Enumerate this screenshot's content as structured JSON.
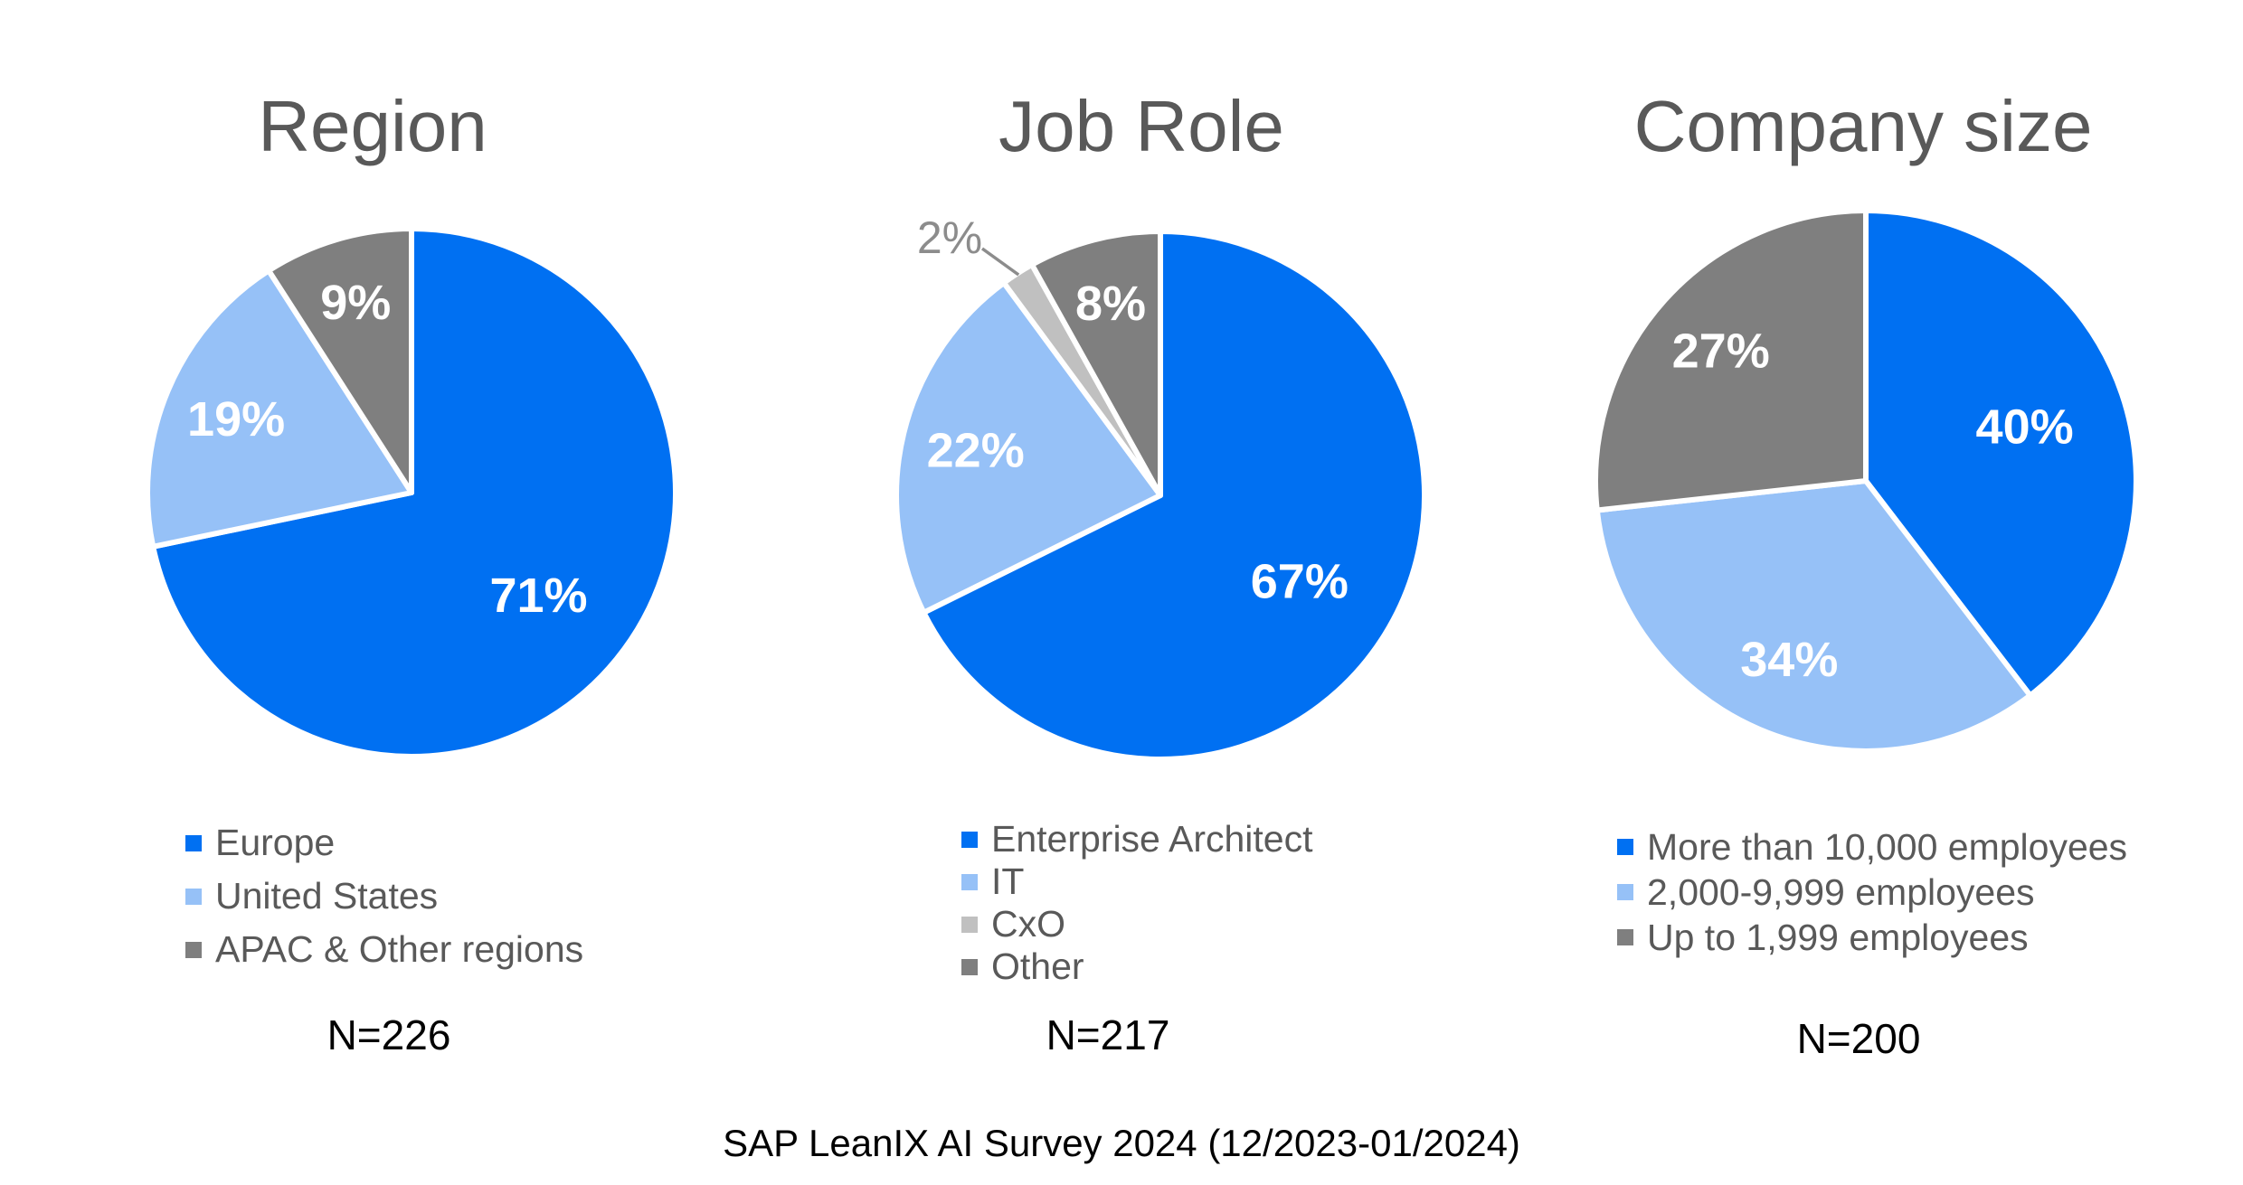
{
  "page": {
    "caption": "SAP LeanIX AI Survey 2024 (12/2023-01/2024)"
  },
  "colors": {
    "blue": "#0070F2",
    "light_blue": "#96C1F7",
    "dark_gray": "#7F7F7F",
    "light_gray": "#C0C0C0",
    "title_text": "#595959",
    "legend_text": "#595959",
    "pct_label_text": "#FFFFFF",
    "outside_label_text": "#8C8C8C",
    "n_label_text": "#000000"
  },
  "chart_data": [
    {
      "type": "pie",
      "title": "Region",
      "n_label": "N=226",
      "legend_position": "bottom-left",
      "slices": [
        {
          "label": "Europe",
          "value": 71,
          "pct_label": "71%",
          "color_key": "blue"
        },
        {
          "label": "United States",
          "value": 19,
          "pct_label": "19%",
          "color_key": "light_blue"
        },
        {
          "label": "APAC & Other regions",
          "value": 9,
          "pct_label": "9%",
          "color_key": "dark_gray"
        }
      ]
    },
    {
      "type": "pie",
      "title": "Job Role",
      "n_label": "N=217",
      "legend_position": "bottom-left",
      "slices": [
        {
          "label": "Enterprise Architect",
          "value": 67,
          "pct_label": "67%",
          "color_key": "blue"
        },
        {
          "label": "IT",
          "value": 22,
          "pct_label": "22%",
          "color_key": "light_blue"
        },
        {
          "label": "CxO",
          "value": 2,
          "pct_label": "2%",
          "color_key": "light_gray",
          "label_outside": true
        },
        {
          "label": "Other",
          "value": 8,
          "pct_label": "8%",
          "color_key": "dark_gray"
        }
      ]
    },
    {
      "type": "pie",
      "title": "Company size",
      "n_label": "N=200",
      "legend_position": "bottom-left",
      "slices": [
        {
          "label": "More than 10,000 employees",
          "value": 40,
          "pct_label": "40%",
          "color_key": "blue"
        },
        {
          "label": "2,000-9,999 employees",
          "value": 34,
          "pct_label": "34%",
          "color_key": "light_blue"
        },
        {
          "label": "Up to 1,999 employees",
          "value": 27,
          "pct_label": "27%",
          "color_key": "dark_gray"
        }
      ]
    }
  ]
}
